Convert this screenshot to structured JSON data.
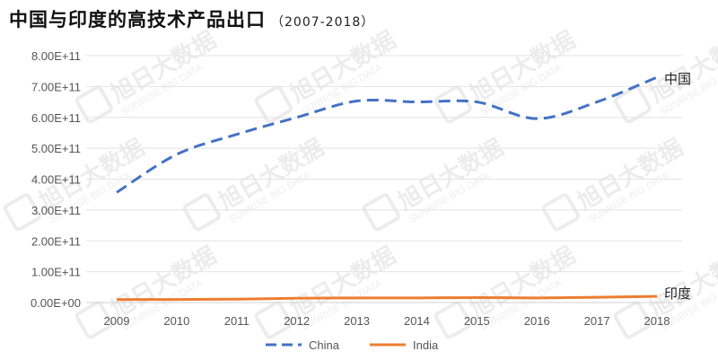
{
  "title": {
    "main": "中国与印度的高技术产品出口",
    "sub": "（2007-2018）"
  },
  "watermark": {
    "cn": "旭日大数据",
    "en": "SUNRISE BIG DATA"
  },
  "labels": {
    "china_end": "中国",
    "india_end": "印度"
  },
  "chart_data": {
    "type": "line",
    "x": [
      "2009",
      "2010",
      "2011",
      "2012",
      "2013",
      "2014",
      "2015",
      "2016",
      "2017",
      "2018"
    ],
    "y_ticks": [
      "0.00E+00",
      "1.00E+11",
      "2.00E+11",
      "3.00E+11",
      "4.00E+11",
      "5.00E+11",
      "6.00E+11",
      "7.00E+11",
      "8.00E+11"
    ],
    "ylim": [
      0,
      800000000000
    ],
    "grid": true,
    "legend_position": "bottom",
    "series": [
      {
        "name": "China",
        "color": "#4472c4",
        "dash": true,
        "values": [
          357000000000,
          480000000000,
          545000000000,
          600000000000,
          653000000000,
          650000000000,
          650000000000,
          596000000000,
          650000000000,
          730000000000
        ]
      },
      {
        "name": "India",
        "color": "#ed7d31",
        "dash": false,
        "values": [
          10000000000,
          10000000000,
          11000000000,
          14000000000,
          15000000000,
          15000000000,
          16000000000,
          15000000000,
          17000000000,
          20000000000
        ]
      }
    ]
  }
}
